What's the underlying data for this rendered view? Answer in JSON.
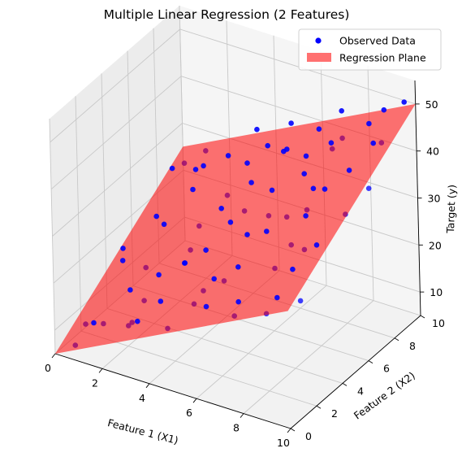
{
  "chart_data": {
    "type": "scatter",
    "title": "Multiple Linear Regression (2 Features)",
    "xlabel": "Feature 1 (X1)",
    "ylabel": "Feature 2 (X2)",
    "zlabel": "Target (y)",
    "xlim": [
      0,
      10
    ],
    "ylim": [
      0,
      10
    ],
    "zlim": [
      5,
      55
    ],
    "x_ticks": [
      0,
      2,
      4,
      6,
      8,
      10
    ],
    "y_ticks": [
      0,
      2,
      4,
      6,
      8,
      10
    ],
    "z_ticks": [
      10,
      20,
      30,
      40,
      50
    ],
    "grid": true,
    "legend_position": "top-right",
    "legend": [
      {
        "label": "Observed Data",
        "color": "#0000ff",
        "marker": "circle"
      },
      {
        "label": "Regression Plane",
        "color": "#ff6666",
        "marker": "patch"
      }
    ],
    "plane": {
      "intercept": 5,
      "coef_x1": 2.5,
      "coef_x2": 2.0,
      "x1_range": [
        0,
        10
      ],
      "x2_range": [
        0,
        10
      ],
      "color": "#ff0000",
      "alpha": 0.55
    },
    "series": [
      {
        "name": "Observed Data",
        "color": "#0000ff",
        "points": [
          [
            0.7,
            0.3,
            7.2
          ],
          [
            1.4,
            0.5,
            12.6
          ],
          [
            2.3,
            1.8,
            11.0
          ],
          [
            3.1,
            0.8,
            14.9
          ],
          [
            1.8,
            2.6,
            15.2
          ],
          [
            3.6,
            1.7,
            17.8
          ],
          [
            4.5,
            0.6,
            16.1
          ],
          [
            5.2,
            1.4,
            20.5
          ],
          [
            6.0,
            0.9,
            22.4
          ],
          [
            6.8,
            1.6,
            20.0
          ],
          [
            7.5,
            0.7,
            26.3
          ],
          [
            8.4,
            1.2,
            24.0
          ],
          [
            9.1,
            0.8,
            29.5
          ],
          [
            9.7,
            1.5,
            28.1
          ],
          [
            1.0,
            3.5,
            18.0
          ],
          [
            2.7,
            3.2,
            18.4
          ],
          [
            4.0,
            2.9,
            23.7
          ],
          [
            5.6,
            3.0,
            22.2
          ],
          [
            6.5,
            2.5,
            27.8
          ],
          [
            7.9,
            2.8,
            29.0
          ],
          [
            8.9,
            3.3,
            33.4
          ],
          [
            0.4,
            4.6,
            17.0
          ],
          [
            1.9,
            5.1,
            23.3
          ],
          [
            3.4,
            4.4,
            21.9
          ],
          [
            4.8,
            5.0,
            28.6
          ],
          [
            5.9,
            4.3,
            29.4
          ],
          [
            7.1,
            5.2,
            32.9
          ],
          [
            8.2,
            4.7,
            36.1
          ],
          [
            9.5,
            5.4,
            36.8
          ],
          [
            0.9,
            6.3,
            20.5
          ],
          [
            2.2,
            6.8,
            27.1
          ],
          [
            3.8,
            6.1,
            27.3
          ],
          [
            4.6,
            7.0,
            31.9
          ],
          [
            5.7,
            6.6,
            33.0
          ],
          [
            6.7,
            7.3,
            36.4
          ],
          [
            7.7,
            6.2,
            37.5
          ],
          [
            8.8,
            7.0,
            41.2
          ],
          [
            9.9,
            6.5,
            40.3
          ],
          [
            0.6,
            8.1,
            25.9
          ],
          [
            1.6,
            8.7,
            26.6
          ],
          [
            2.9,
            8.3,
            31.8
          ],
          [
            4.2,
            9.0,
            34.3
          ],
          [
            5.3,
            8.5,
            36.5
          ],
          [
            6.3,
            9.2,
            40.7
          ],
          [
            7.3,
            8.4,
            40.0
          ],
          [
            8.5,
            9.1,
            45.6
          ],
          [
            9.3,
            8.6,
            44.0
          ],
          [
            1.2,
            9.6,
            27.0
          ],
          [
            3.3,
            9.8,
            34.4
          ],
          [
            5.0,
            9.4,
            39.4
          ],
          [
            7.0,
            9.7,
            44.5
          ],
          [
            8.7,
            9.9,
            46.9
          ],
          [
            9.8,
            9.5,
            51.3
          ],
          [
            2.5,
            2.4,
            14.5
          ],
          [
            4.4,
            3.8,
            24.9
          ],
          [
            6.1,
            5.6,
            30.6
          ],
          [
            7.6,
            7.8,
            43.2
          ],
          [
            3.0,
            5.8,
            23.0
          ],
          [
            5.5,
            7.9,
            37.8
          ],
          [
            8.0,
            3.9,
            31.5
          ],
          [
            1.3,
            1.4,
            10.1
          ],
          [
            9.0,
            2.2,
            32.0
          ],
          [
            0.2,
            2.0,
            6.8
          ],
          [
            6.9,
            4.0,
            32.4
          ],
          [
            4.1,
            7.6,
            33.8
          ],
          [
            2.0,
            7.4,
            29.6
          ],
          [
            7.4,
            9.0,
            41.0
          ],
          [
            9.6,
            3.0,
            36.2
          ],
          [
            5.8,
            1.9,
            25.6
          ],
          [
            3.7,
            3.4,
            22.0
          ],
          [
            8.3,
            6.0,
            38.8
          ],
          [
            1.7,
            4.0,
            16.4
          ],
          [
            6.4,
            8.0,
            38.0
          ],
          [
            4.9,
            5.9,
            29.0
          ],
          [
            0.5,
            9.2,
            24.2
          ],
          [
            9.4,
            7.8,
            46.0
          ],
          [
            2.6,
            1.0,
            12.7
          ],
          [
            7.8,
            5.5,
            34.8
          ],
          [
            3.5,
            7.1,
            27.2
          ],
          [
            5.1,
            2.3,
            21.0
          ]
        ]
      }
    ]
  }
}
